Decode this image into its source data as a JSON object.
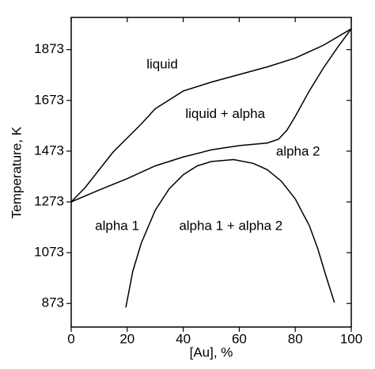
{
  "chart_data": {
    "type": "line",
    "xlabel": "[Au], %",
    "ylabel": "Temperature, K",
    "xlim": [
      0,
      100
    ],
    "xticks": [
      0,
      20,
      40,
      60,
      80,
      100
    ],
    "ylim": [
      780,
      2000
    ],
    "yticks": [
      873,
      1073,
      1273,
      1473,
      1673,
      1873
    ],
    "series": [
      {
        "color": "#000000",
        "x": [
          0,
          5,
          10,
          15,
          20,
          25,
          30,
          40,
          50,
          60,
          70,
          80,
          90,
          100
        ],
        "values": [
          1273,
          1330,
          1400,
          1470,
          1525,
          1580,
          1640,
          1710,
          1745,
          1775,
          1805,
          1840,
          1890,
          1955
        ]
      },
      {
        "color": "#000000",
        "x": [
          0,
          10,
          20,
          30,
          40,
          50,
          60,
          70,
          74,
          77,
          80,
          85,
          90,
          95,
          100
        ],
        "values": [
          1273,
          1320,
          1365,
          1415,
          1450,
          1478,
          1495,
          1505,
          1520,
          1555,
          1610,
          1710,
          1800,
          1880,
          1955
        ]
      },
      {
        "color": "#000000",
        "x": [
          19.5,
          22,
          25,
          30,
          35,
          40,
          45,
          50,
          58,
          65,
          70,
          75,
          80,
          85,
          88,
          91,
          94
        ],
        "values": [
          857,
          1000,
          1110,
          1240,
          1325,
          1380,
          1415,
          1432,
          1440,
          1425,
          1400,
          1355,
          1285,
          1180,
          1090,
          980,
          876
        ]
      }
    ],
    "annotations": [
      {
        "text": "liquid",
        "x": 32.5,
        "y": 1813
      },
      {
        "text": "liquid + alpha",
        "x": 55,
        "y": 1617
      },
      {
        "text": "alpha 2",
        "x": 81,
        "y": 1470
      },
      {
        "text": "alpha 1",
        "x": 16.4,
        "y": 1176
      },
      {
        "text": "alpha 1 + alpha 2",
        "x": 57,
        "y": 1176
      }
    ]
  }
}
